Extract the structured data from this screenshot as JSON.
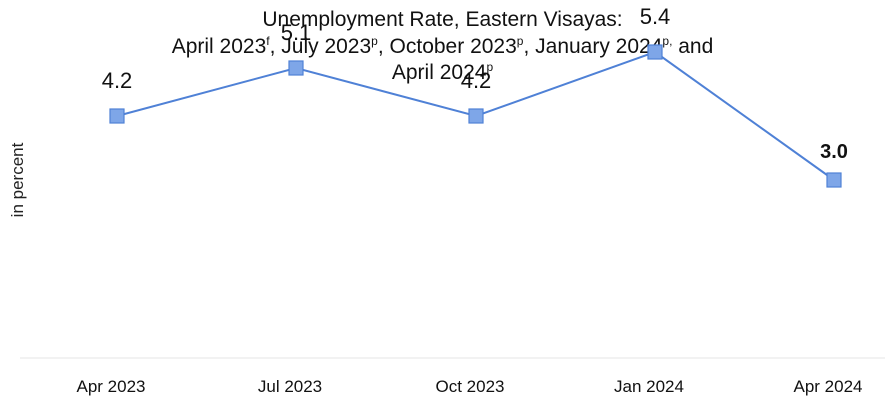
{
  "chart_data": {
    "type": "line",
    "title_lines": [
      {
        "parts": [
          {
            "text": "Unemployment Rate, Eastern Visayas:"
          }
        ]
      },
      {
        "parts": [
          {
            "text": "April 2023"
          },
          {
            "text": "f",
            "sup": true
          },
          {
            "text": ", July 2023"
          },
          {
            "text": "p",
            "sup": true
          },
          {
            "text": ", October 2023"
          },
          {
            "text": "p",
            "sup": true
          },
          {
            "text": ", January 2024"
          },
          {
            "text": "p,",
            "sup": true
          },
          {
            "text": " and"
          }
        ]
      },
      {
        "parts": [
          {
            "text": "April 2024"
          },
          {
            "text": "p",
            "sup": true
          }
        ]
      }
    ],
    "ylabel": "in percent",
    "xlabel": "",
    "categories": [
      "Apr 2023",
      "Jul 2023",
      "Oct 2023",
      "Jan 2024",
      "Apr 2024"
    ],
    "series": [
      {
        "values": [
          4.2,
          5.1,
          4.2,
          5.4,
          3.0
        ],
        "labels": [
          "4.2",
          "5.1",
          "4.2",
          "5.4",
          "3.0"
        ],
        "bold_label_index": 4,
        "color": "#4f81d6",
        "marker": "square",
        "marker_fill": "#7ea6e8"
      }
    ],
    "ylim": [
      0,
      6
    ],
    "grid": false,
    "legend": "none"
  }
}
